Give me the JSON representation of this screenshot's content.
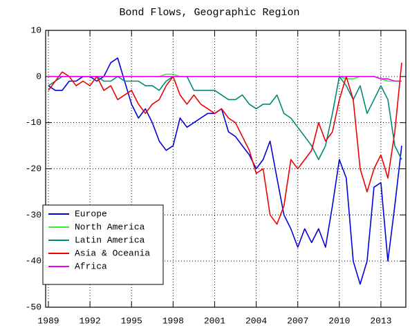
{
  "chart_data": {
    "type": "line",
    "title": "Bond Flows, Geographic Region",
    "x": [
      1989,
      1989.5,
      1990,
      1990.5,
      1991,
      1991.5,
      1992,
      1992.5,
      1993,
      1993.5,
      1994,
      1994.5,
      1995,
      1995.5,
      1996,
      1996.5,
      1997,
      1997.5,
      1998,
      1998.5,
      1999,
      1999.5,
      2000,
      2000.5,
      2001,
      2001.5,
      2002,
      2002.5,
      2003,
      2003.5,
      2004,
      2004.5,
      2005,
      2005.5,
      2006,
      2006.5,
      2007,
      2007.5,
      2008,
      2008.5,
      2009,
      2009.5,
      2010,
      2010.5,
      2011,
      2011.5,
      2012,
      2012.5,
      2013,
      2013.5,
      2014,
      2014.5
    ],
    "series": [
      {
        "name": "Europe",
        "color": "#0000dd",
        "values": [
          -2,
          -3,
          -3,
          -1,
          -1,
          0,
          0,
          -1,
          0,
          3,
          4,
          -1,
          -6,
          -9,
          -7,
          -10,
          -14,
          -16,
          -15,
          -9,
          -11,
          -10,
          -9,
          -8,
          -8,
          -7,
          -12,
          -13,
          -15,
          -17,
          -20,
          -18,
          -14,
          -22,
          -30,
          -33,
          -37,
          -33,
          -36,
          -33,
          -37,
          -28,
          -18,
          -22,
          -40,
          -45,
          -40,
          -24,
          -23,
          -40,
          -28,
          -15
        ]
      },
      {
        "name": "North America",
        "color": "#33ee33",
        "values": [
          0,
          0,
          0,
          0,
          0,
          0,
          0,
          0,
          0,
          0,
          0,
          0,
          0,
          0,
          0,
          0,
          0,
          0.5,
          0.5,
          0,
          0,
          0,
          0,
          0,
          0,
          0,
          0,
          0,
          0,
          0,
          0,
          0,
          0,
          0,
          0,
          0,
          0,
          0,
          0,
          0,
          0,
          0,
          0,
          -0.5,
          -0.5,
          0,
          0,
          0,
          -0.5,
          -1,
          -1,
          -1
        ]
      },
      {
        "name": "Latin America",
        "color": "#008877",
        "values": [
          -2,
          -1,
          0,
          0,
          0,
          0,
          0,
          0,
          -1,
          -1,
          0,
          -1,
          -1,
          -1,
          -2,
          -2,
          -3,
          -1,
          0,
          0,
          0,
          -3,
          -3,
          -3,
          -3,
          -4,
          -5,
          -5,
          -4,
          -6,
          -7,
          -6,
          -6,
          -4,
          -8,
          -9,
          -11,
          -13,
          -15,
          -18,
          -15,
          -8,
          0,
          -2,
          -5,
          -2,
          -8,
          -5,
          -2,
          -5,
          -15,
          -18
        ]
      },
      {
        "name": "Asia & Oceania",
        "color": "#ee0000",
        "values": [
          -3,
          -1,
          1,
          0,
          -2,
          -1,
          -2,
          0,
          -3,
          -2,
          -5,
          -4,
          -3,
          -6,
          -8,
          -6,
          -5,
          -2,
          0,
          -4,
          -6,
          -4,
          -6,
          -7,
          -8,
          -7,
          -9,
          -10,
          -13,
          -16,
          -21,
          -20,
          -30,
          -32,
          -28,
          -18,
          -20,
          -18,
          -16,
          -10,
          -14,
          -12,
          -5,
          0,
          -5,
          -20,
          -25,
          -20,
          -17,
          -22,
          -12,
          3
        ]
      },
      {
        "name": "Africa",
        "color": "#ee00ee",
        "values": [
          0,
          0,
          0,
          0,
          0,
          0,
          0,
          0,
          0,
          0,
          0,
          0,
          0,
          0,
          0,
          0,
          0,
          0,
          0,
          0,
          0,
          0,
          0,
          0,
          0,
          0,
          0,
          0,
          0,
          0,
          0,
          0,
          0,
          0,
          0,
          0,
          0,
          0,
          0,
          0,
          0,
          0,
          0,
          0,
          0,
          0,
          0,
          0,
          -0.5,
          -0.5,
          -1,
          -1
        ]
      }
    ],
    "xlim": [
      1988.8,
      2014.8
    ],
    "ylim": [
      -50,
      10
    ],
    "xticks": [
      1989,
      1992,
      1995,
      1998,
      2001,
      2004,
      2007,
      2010,
      2013
    ],
    "yticks": [
      -50,
      -40,
      -30,
      -20,
      -10,
      0,
      10
    ],
    "grid": true,
    "legend": "lower left"
  }
}
